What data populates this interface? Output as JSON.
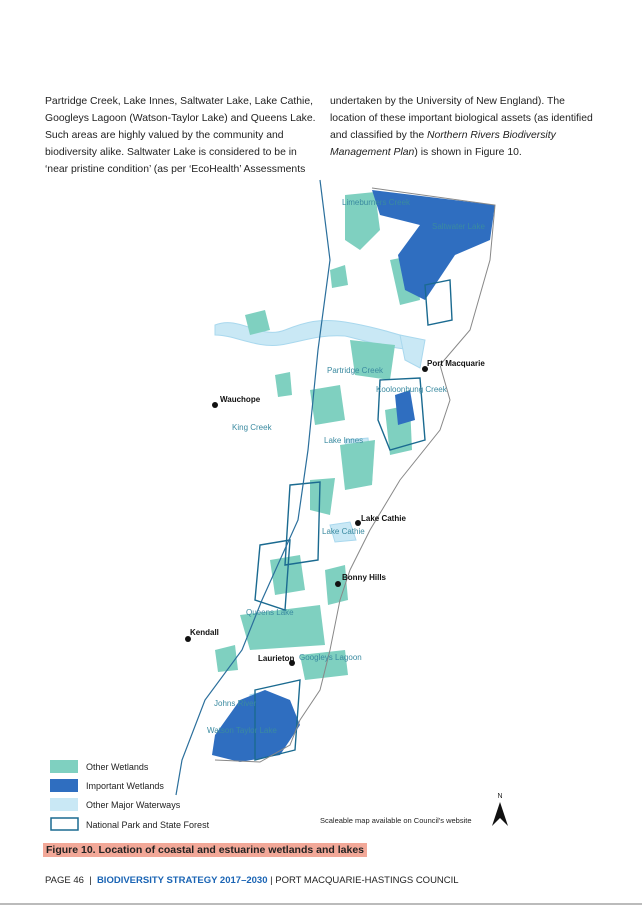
{
  "body": {
    "left_lines": [
      "Partridge Creek, Lake Innes, Saltwater Lake, Lake Cathie,",
      "Googleys Lagoon (Watson-Taylor Lake) and Queens Lake.",
      "Such areas are highly valued by the community and",
      "biodiversity alike. Saltwater Lake is considered to be in",
      "‘near pristine condition’ (as per ‘EcoHealth’ Assessments"
    ],
    "right_column": {
      "line1": "undertaken by the University of New England). The",
      "line2": "location of these important biological assets (as identified",
      "line3": "and classified by the",
      "line3_italic": "Northern Rivers Biodiversity",
      "line4_italic": "Management Plan",
      "line4": ") is shown in Figure 10."
    }
  },
  "map": {
    "places": [
      "Limeburners Creek",
      "Saltwater Lake",
      "Port Macquarie",
      "Partridge Creek",
      "Kooloonbung Creek",
      "Wauchope",
      "King Creek",
      "Lake Innes",
      "Lake Cathie",
      "Lake Cathie",
      "Bonny Hills",
      "Queens Lake",
      "Kendall",
      "Laurieton",
      "Googleys Lagoon",
      "Johns River",
      "Watson Taylor Lake"
    ],
    "legend": [
      "Other Wetlands",
      "Important Wetlands",
      "Other Major Waterways",
      "National Park and State Forest"
    ],
    "note": "Scaleable map available on Council's website",
    "north": "N"
  },
  "caption": "Figure 10. Location of coastal and estuarine wetlands and lakes",
  "footer": {
    "page": "PAGE 46",
    "separator": "|",
    "title": "BIODIVERSITY STRATEGY 2017–2030",
    "council": "PORT MACQUARIE-HASTINGS COUNCIL"
  }
}
